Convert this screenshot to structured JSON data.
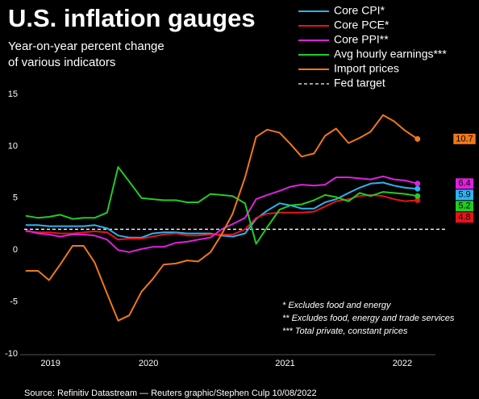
{
  "chart_data": {
    "type": "line",
    "title": "U.S. inflation gauges",
    "subtitle": [
      "Year-on-year percent change",
      "of various indicators"
    ],
    "x": [
      2019.58,
      2019.67,
      2019.75,
      2019.83,
      2019.92,
      2020.0,
      2020.08,
      2020.17,
      2020.25,
      2020.33,
      2020.42,
      2020.5,
      2020.58,
      2020.67,
      2020.75,
      2020.83,
      2020.92,
      2021.0,
      2021.08,
      2021.17,
      2021.25,
      2021.33,
      2021.42,
      2021.5,
      2021.58,
      2021.67,
      2021.75,
      2021.83,
      2021.92,
      2022.0,
      2022.08,
      2022.17,
      2022.25,
      2022.33,
      2022.42
    ],
    "series": [
      {
        "name": "Core CPI*",
        "color": "#2ab4f0",
        "values": [
          2.4,
          2.4,
          2.3,
          2.3,
          2.3,
          2.3,
          2.4,
          2.1,
          1.4,
          1.2,
          1.2,
          1.6,
          1.7,
          1.7,
          1.6,
          1.6,
          1.6,
          1.4,
          1.3,
          1.6,
          3.0,
          3.8,
          4.5,
          4.3,
          4.0,
          4.0,
          4.6,
          4.9,
          5.5,
          6.0,
          6.4,
          6.5,
          6.2,
          6.0,
          5.9
        ]
      },
      {
        "name": "Core PCE*",
        "color": "#e8141c",
        "values": [
          1.8,
          1.7,
          1.7,
          1.6,
          1.6,
          1.7,
          1.8,
          1.7,
          1.0,
          1.1,
          1.1,
          1.3,
          1.5,
          1.6,
          1.4,
          1.4,
          1.5,
          1.5,
          1.5,
          2.0,
          3.1,
          3.5,
          3.6,
          3.6,
          3.6,
          3.7,
          4.2,
          4.7,
          4.9,
          5.2,
          5.3,
          5.2,
          4.9,
          4.7,
          4.8
        ]
      },
      {
        "name": "Core PPI**",
        "color": "#e020e0",
        "values": [
          1.9,
          1.6,
          1.5,
          1.3,
          1.5,
          1.5,
          1.4,
          1.0,
          0.0,
          -0.2,
          0.1,
          0.3,
          0.3,
          0.7,
          0.8,
          1.0,
          1.2,
          2.0,
          2.5,
          3.1,
          4.9,
          5.3,
          5.7,
          6.1,
          6.3,
          6.2,
          6.3,
          7.0,
          7.0,
          6.9,
          6.8,
          7.1,
          6.8,
          6.7,
          6.4
        ]
      },
      {
        "name": "Avg hourly earnings***",
        "color": "#22cc22",
        "values": [
          3.3,
          3.1,
          3.2,
          3.4,
          3.0,
          3.1,
          3.1,
          3.6,
          8.0,
          6.6,
          5.0,
          4.9,
          4.8,
          4.8,
          4.6,
          4.6,
          5.4,
          5.3,
          5.2,
          4.5,
          0.6,
          2.2,
          3.9,
          4.3,
          4.4,
          4.8,
          5.3,
          5.1,
          4.7,
          5.5,
          5.2,
          5.6,
          5.5,
          5.4,
          5.2
        ]
      },
      {
        "name": "Import prices",
        "color": "#f07818",
        "values": [
          -2.0,
          -2.0,
          -2.9,
          -1.4,
          0.4,
          0.4,
          -1.2,
          -4.2,
          -6.8,
          -6.3,
          -4.0,
          -2.8,
          -1.4,
          -1.3,
          -1.0,
          -1.1,
          -0.2,
          1.5,
          3.5,
          7.0,
          10.9,
          11.6,
          11.3,
          10.2,
          9.0,
          9.3,
          11.0,
          11.7,
          10.3,
          10.8,
          11.4,
          13.0,
          12.4,
          11.5,
          10.7
        ]
      }
    ],
    "reference_line": {
      "name": "Fed target",
      "value": 2,
      "color": "#ffffff",
      "style": "dashed"
    },
    "xlim": [
      2019.54,
      2022.55
    ],
    "xticks": [
      {
        "value": 2019.76,
        "label": "2019"
      },
      {
        "value": 2020.47,
        "label": "2020"
      },
      {
        "value": 2021.46,
        "label": "2021"
      },
      {
        "value": 2022.31,
        "label": "2022"
      }
    ],
    "ylim": [
      -10,
      15
    ],
    "yticks": [
      15,
      10,
      5,
      0,
      -5,
      -10
    ],
    "grid": false,
    "legend": "top-right",
    "footnotes": [
      "* Excludes food and energy",
      "** Excludes food, energy and trade services",
      "*** Total private, constant prices"
    ],
    "source": "Source: Refinitiv Datastream — Reuters graphic/Stephen Culp 10/08/2022"
  }
}
